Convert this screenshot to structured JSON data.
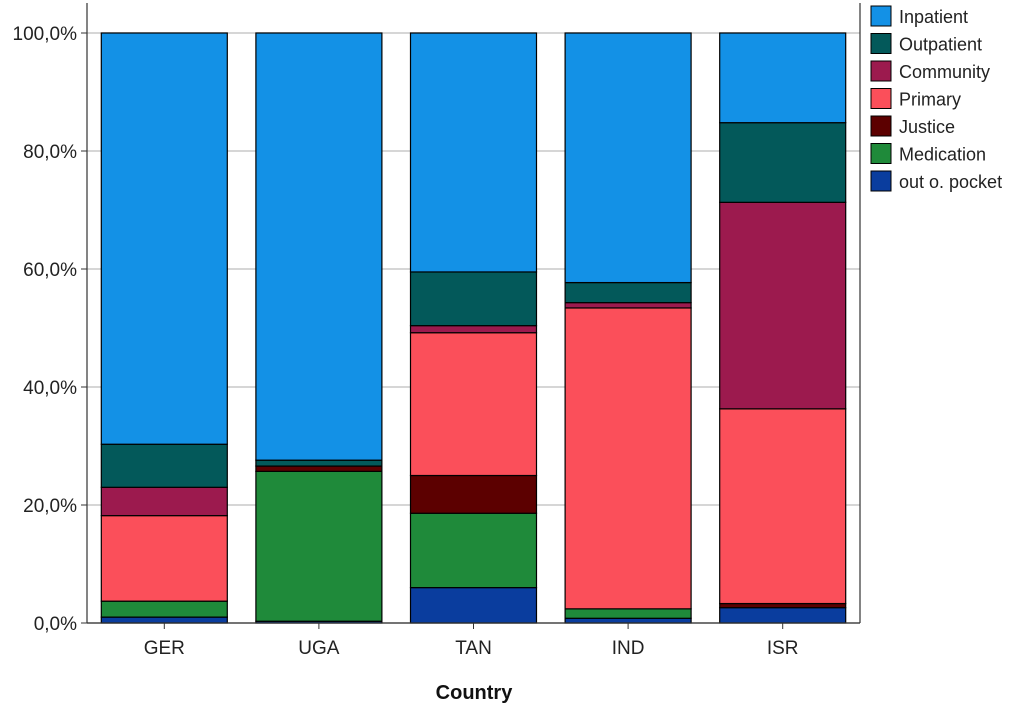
{
  "chart_data": {
    "type": "bar",
    "stacked": true,
    "title": "",
    "xlabel": "Country",
    "ylabel": "",
    "ylim": [
      0,
      100
    ],
    "y_ticks": [
      "0,0%",
      "20,0%",
      "40,0%",
      "60,0%",
      "80,0%",
      "100,0%"
    ],
    "y_tick_values": [
      0,
      20,
      40,
      60,
      80,
      100
    ],
    "grid": true,
    "legend_position": "top-right",
    "categories": [
      "GER",
      "UGA",
      "TAN",
      "IND",
      "ISR"
    ],
    "series": [
      {
        "name": "out o. pocket",
        "color": "#0a3d9e",
        "values": [
          1.0,
          0.3,
          6.0,
          0.8,
          2.6
        ]
      },
      {
        "name": "Medication",
        "color": "#1f8a3a",
        "values": [
          2.7,
          25.4,
          12.6,
          1.6,
          0.0
        ]
      },
      {
        "name": "Justice",
        "color": "#5c0000",
        "values": [
          0.0,
          0.9,
          6.4,
          0.0,
          0.7
        ]
      },
      {
        "name": "Primary",
        "color": "#fb4f5a",
        "values": [
          14.5,
          0.0,
          24.2,
          51.0,
          33.0
        ]
      },
      {
        "name": "Community",
        "color": "#9c1a4e",
        "values": [
          4.8,
          0.0,
          1.2,
          0.9,
          35.0
        ]
      },
      {
        "name": "Outpatient",
        "color": "#03595a",
        "values": [
          7.3,
          1.0,
          9.1,
          3.4,
          13.5
        ]
      },
      {
        "name": "Inpatient",
        "color": "#1391e6",
        "values": [
          69.7,
          72.4,
          40.5,
          42.3,
          15.2
        ]
      }
    ],
    "legend_order": [
      "Inpatient",
      "Outpatient",
      "Community",
      "Primary",
      "Justice",
      "Medication",
      "out o. pocket"
    ]
  }
}
